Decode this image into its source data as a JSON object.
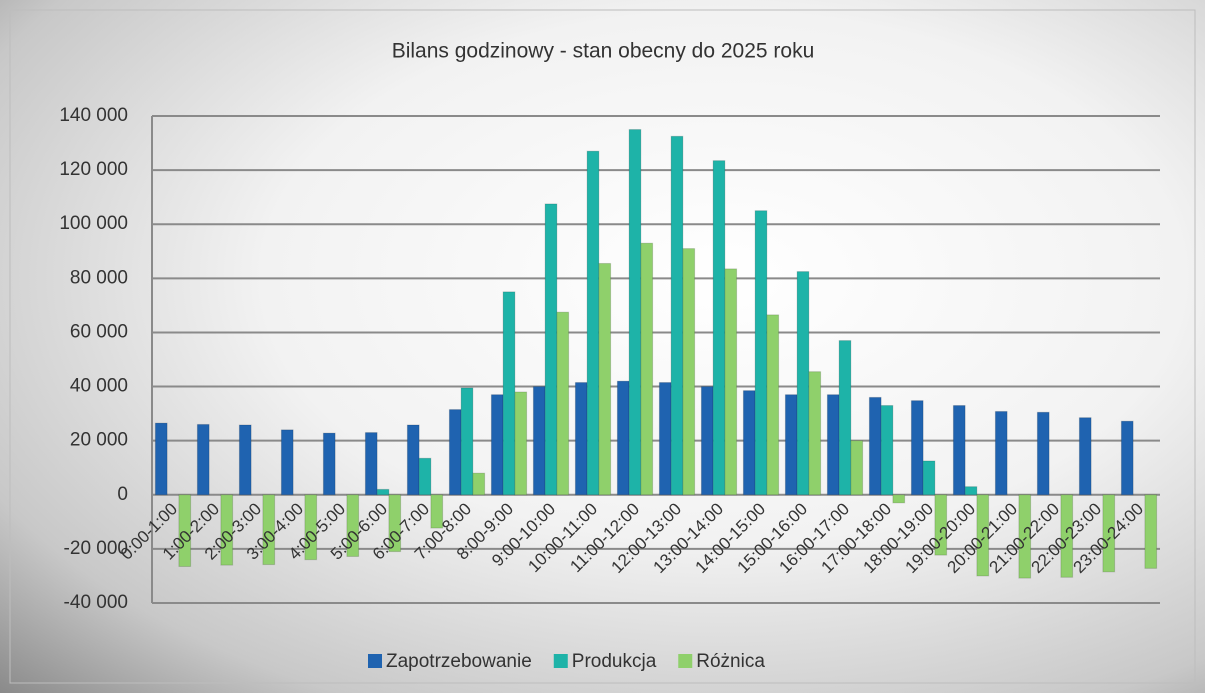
{
  "chart_data": {
    "type": "bar",
    "title": "Bilans godzinowy - stan obecny do 2025 roku",
    "categories": [
      "0:00-1:00",
      "1:00-2:00",
      "2:00-3:00",
      "3:00-4:00",
      "4:00-5:00",
      "5:00-6:00",
      "6:00-7:00",
      "7:00-8:00",
      "8:00-9:00",
      "9:00-10:00",
      "10:00-11:00",
      "11:00-12:00",
      "12:00-13:00",
      "13:00-14:00",
      "14:00-15:00",
      "15:00-16:00",
      "16:00-17:00",
      "17:00-18:00",
      "18:00-19:00",
      "19:00-20:00",
      "20:00-21:00",
      "21:00-22:00",
      "22:00-23:00",
      "23:00-24:00"
    ],
    "series": [
      {
        "name": "Zapotrzebowanie",
        "color": "#1f63b0",
        "values": [
          26500,
          26000,
          25800,
          24000,
          22800,
          23000,
          25800,
          31500,
          37000,
          40000,
          41500,
          42000,
          41500,
          40000,
          38500,
          37000,
          37000,
          36000,
          34800,
          33000,
          30800,
          30500,
          28500,
          27200
        ]
      },
      {
        "name": "Produkcja",
        "color": "#1eb3a8",
        "values": [
          0,
          0,
          0,
          0,
          0,
          2000,
          13500,
          39500,
          75000,
          107500,
          127000,
          135000,
          132500,
          123500,
          105000,
          82500,
          57000,
          33000,
          12500,
          3000,
          0,
          0,
          0,
          0
        ]
      },
      {
        "name": "Różnica",
        "color": "#8fd06b",
        "values": [
          -26500,
          -26000,
          -25800,
          -24000,
          -22800,
          -21000,
          -12300,
          8000,
          38000,
          67500,
          85500,
          93000,
          91000,
          83500,
          66500,
          45500,
          20000,
          -3000,
          -22300,
          -30000,
          -30800,
          -30500,
          -28500,
          -27200
        ]
      }
    ],
    "ylim": [
      -40000,
      140000
    ],
    "yticks": [
      {
        "value": -40000,
        "label": "-40 000"
      },
      {
        "value": -20000,
        "label": "-20 000"
      },
      0,
      {
        "value": 20000,
        "label": "20 000"
      },
      {
        "value": 40000,
        "label": "40 000"
      },
      {
        "value": 60000,
        "label": "60 000"
      },
      {
        "value": 80000,
        "label": "80 000"
      },
      {
        "value": 100000,
        "label": "100 000"
      },
      {
        "value": 120000,
        "label": "120 000"
      },
      {
        "value": 140000,
        "label": "140 000"
      }
    ],
    "grid": true
  }
}
